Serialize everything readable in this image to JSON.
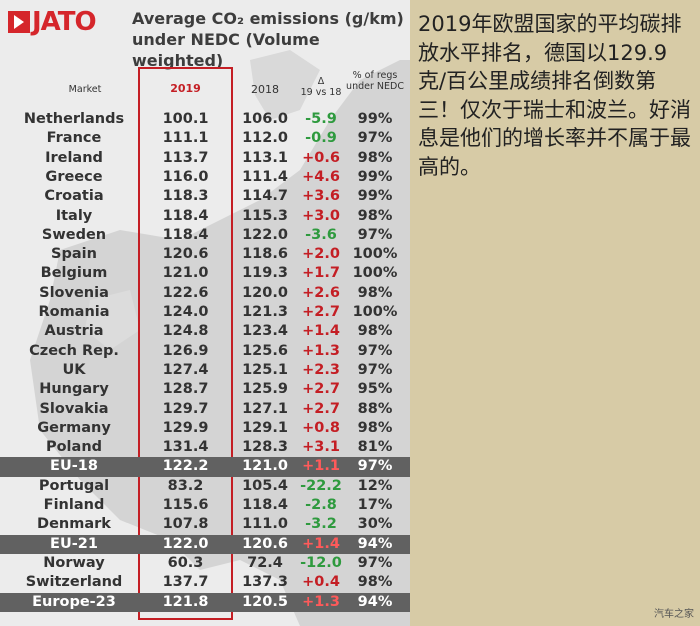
{
  "brand": "JATO",
  "title": "Average CO₂ emissions (g/km) under NEDC (Volume weighted)",
  "caption": "2019年欧盟国家的平均碳排放水平排名，德国以129.9克/百公里成绩排名倒数第三！仅次于瑞士和波兰。好消息是他们的增长率并不属于最高的。",
  "watermark": "汽车之家",
  "colors": {
    "accent_red": "#c41e24",
    "positive_delta": "#c41e24",
    "negative_delta": "#2e9a3e",
    "total_row": "#616161",
    "panel_bg": "#ececec",
    "right_bg": "#d7cba6"
  },
  "chart_data": {
    "type": "table",
    "title": "Average CO₂ emissions (g/km) under NEDC (Volume weighted)",
    "headers": {
      "market": "Market",
      "y2019": "2019",
      "y2018": "2018",
      "delta_symbol": "Δ",
      "delta_sub": "19 vs 18",
      "pct": "% of regs under NEDC"
    },
    "rows": [
      {
        "market": "Netherlands",
        "y2019": "100.1",
        "y2018": "106.0",
        "delta": "-5.9",
        "pct": "99%",
        "total": false
      },
      {
        "market": "France",
        "y2019": "111.1",
        "y2018": "112.0",
        "delta": "-0.9",
        "pct": "97%",
        "total": false
      },
      {
        "market": "Ireland",
        "y2019": "113.7",
        "y2018": "113.1",
        "delta": "+0.6",
        "pct": "98%",
        "total": false
      },
      {
        "market": "Greece",
        "y2019": "116.0",
        "y2018": "111.4",
        "delta": "+4.6",
        "pct": "99%",
        "total": false
      },
      {
        "market": "Croatia",
        "y2019": "118.3",
        "y2018": "114.7",
        "delta": "+3.6",
        "pct": "99%",
        "total": false
      },
      {
        "market": "Italy",
        "y2019": "118.4",
        "y2018": "115.3",
        "delta": "+3.0",
        "pct": "98%",
        "total": false
      },
      {
        "market": "Sweden",
        "y2019": "118.4",
        "y2018": "122.0",
        "delta": "-3.6",
        "pct": "97%",
        "total": false
      },
      {
        "market": "Spain",
        "y2019": "120.6",
        "y2018": "118.6",
        "delta": "+2.0",
        "pct": "100%",
        "total": false
      },
      {
        "market": "Belgium",
        "y2019": "121.0",
        "y2018": "119.3",
        "delta": "+1.7",
        "pct": "100%",
        "total": false
      },
      {
        "market": "Slovenia",
        "y2019": "122.6",
        "y2018": "120.0",
        "delta": "+2.6",
        "pct": "98%",
        "total": false
      },
      {
        "market": "Romania",
        "y2019": "124.0",
        "y2018": "121.3",
        "delta": "+2.7",
        "pct": "100%",
        "total": false
      },
      {
        "market": "Austria",
        "y2019": "124.8",
        "y2018": "123.4",
        "delta": "+1.4",
        "pct": "98%",
        "total": false
      },
      {
        "market": "Czech Rep.",
        "y2019": "126.9",
        "y2018": "125.6",
        "delta": "+1.3",
        "pct": "97%",
        "total": false
      },
      {
        "market": "UK",
        "y2019": "127.4",
        "y2018": "125.1",
        "delta": "+2.3",
        "pct": "97%",
        "total": false
      },
      {
        "market": "Hungary",
        "y2019": "128.7",
        "y2018": "125.9",
        "delta": "+2.7",
        "pct": "95%",
        "total": false
      },
      {
        "market": "Slovakia",
        "y2019": "129.7",
        "y2018": "127.1",
        "delta": "+2.7",
        "pct": "88%",
        "total": false
      },
      {
        "market": "Germany",
        "y2019": "129.9",
        "y2018": "129.1",
        "delta": "+0.8",
        "pct": "98%",
        "total": false
      },
      {
        "market": "Poland",
        "y2019": "131.4",
        "y2018": "128.3",
        "delta": "+3.1",
        "pct": "81%",
        "total": false
      },
      {
        "market": "EU-18",
        "y2019": "122.2",
        "y2018": "121.0",
        "delta": "+1.1",
        "pct": "97%",
        "total": true
      },
      {
        "market": "Portugal",
        "y2019": "83.2",
        "y2018": "105.4",
        "delta": "-22.2",
        "pct": "12%",
        "total": false
      },
      {
        "market": "Finland",
        "y2019": "115.6",
        "y2018": "118.4",
        "delta": "-2.8",
        "pct": "17%",
        "total": false
      },
      {
        "market": "Denmark",
        "y2019": "107.8",
        "y2018": "111.0",
        "delta": "-3.2",
        "pct": "30%",
        "total": false
      },
      {
        "market": "EU-21",
        "y2019": "122.0",
        "y2018": "120.6",
        "delta": "+1.4",
        "pct": "94%",
        "total": true
      },
      {
        "market": "Norway",
        "y2019": "60.3",
        "y2018": "72.4",
        "delta": "-12.0",
        "pct": "97%",
        "total": false
      },
      {
        "market": "Switzerland",
        "y2019": "137.7",
        "y2018": "137.3",
        "delta": "+0.4",
        "pct": "98%",
        "total": false
      },
      {
        "market": "Europe-23",
        "y2019": "121.8",
        "y2018": "120.5",
        "delta": "+1.3",
        "pct": "94%",
        "total": true
      }
    ]
  }
}
